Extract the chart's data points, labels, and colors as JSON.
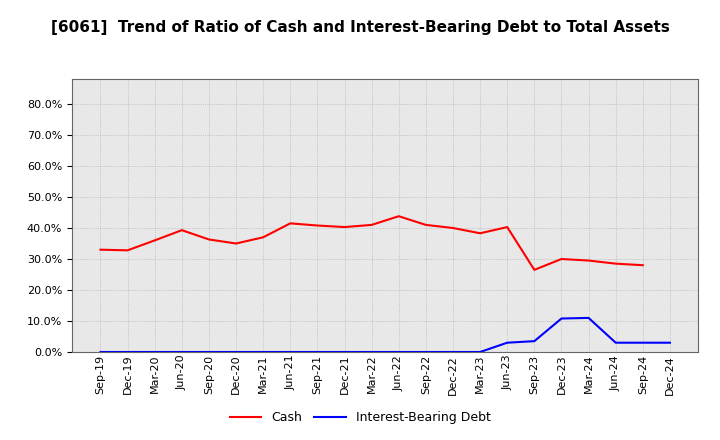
{
  "title": "[6061]  Trend of Ratio of Cash and Interest-Bearing Debt to Total Assets",
  "x_labels": [
    "Sep-19",
    "Dec-19",
    "Mar-20",
    "Jun-20",
    "Sep-20",
    "Dec-20",
    "Mar-21",
    "Jun-21",
    "Sep-21",
    "Dec-21",
    "Mar-22",
    "Jun-22",
    "Sep-22",
    "Dec-22",
    "Mar-23",
    "Jun-23",
    "Sep-23",
    "Dec-23",
    "Mar-24",
    "Jun-24",
    "Sep-24",
    "Dec-24"
  ],
  "cash_values": [
    0.33,
    0.328,
    0.36,
    0.393,
    0.363,
    0.35,
    0.37,
    0.415,
    0.408,
    0.403,
    0.41,
    0.438,
    0.41,
    0.4,
    0.383,
    0.403,
    0.265,
    0.3,
    0.295,
    0.285,
    0.28,
    null
  ],
  "debt_values": [
    0.0,
    0.0,
    0.0,
    0.0,
    0.0,
    0.0,
    0.0,
    0.0,
    0.0,
    0.0,
    0.0,
    0.0,
    0.0,
    0.0,
    0.0,
    0.03,
    0.035,
    0.108,
    0.11,
    0.03,
    0.03,
    0.03
  ],
  "cash_color": "#ff0000",
  "debt_color": "#0000ff",
  "ylim_min": 0.0,
  "ylim_max": 0.88,
  "ytick_values": [
    0.0,
    0.1,
    0.2,
    0.3,
    0.4,
    0.5,
    0.6,
    0.7,
    0.8
  ],
  "background_color": "#ffffff",
  "plot_bg_color": "#e8e8e8",
  "grid_color": "#999999",
  "title_fontsize": 11,
  "tick_fontsize": 8,
  "legend_labels": [
    "Cash",
    "Interest-Bearing Debt"
  ],
  "line_width": 1.5
}
